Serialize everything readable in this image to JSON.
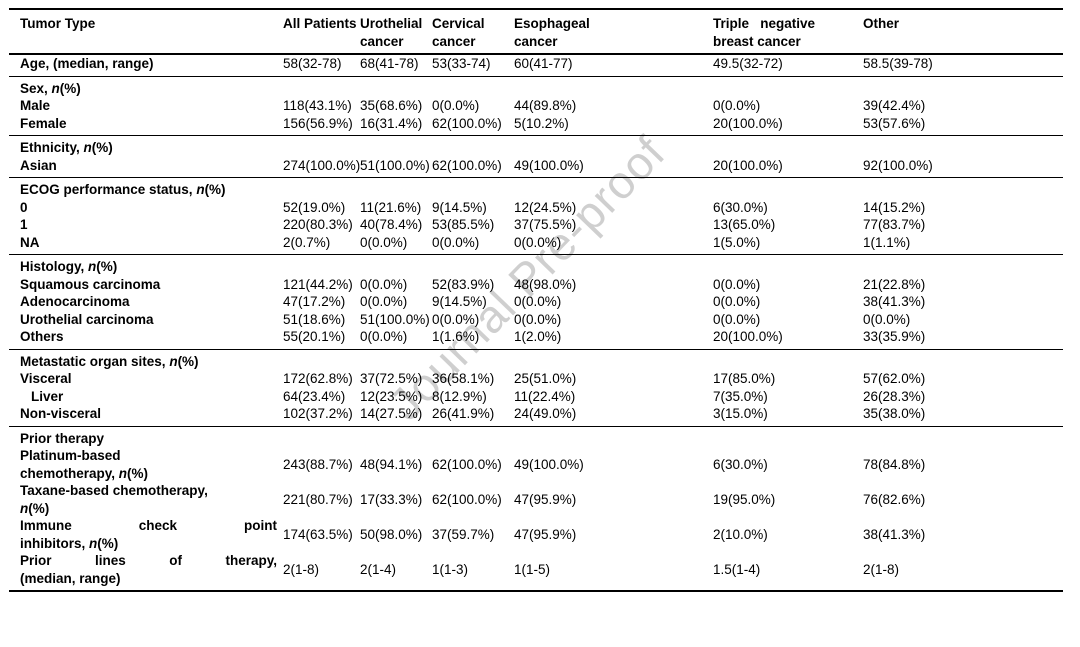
{
  "watermark": {
    "text": "Journal Pre-proof"
  },
  "colors": {
    "background": "#ffffff",
    "text": "#000000",
    "rule": "#000000",
    "watermark_gray": "#a9a9a9"
  },
  "table": {
    "columns": [
      "Tumor Type",
      "All Patients",
      "Urothelial\ncancer",
      "Cervical\ncancer",
      "Esophageal\ncancer",
      "Triple   negative\nbreast cancer",
      "Other"
    ],
    "rows": [
      {
        "label": "Age, (median, range)",
        "values": [
          "58(32-78)",
          "68(41-78)",
          "53(33-74)",
          "60(41-77)",
          "49.5(32-72)",
          "58.5(39-78)"
        ],
        "section_end": true
      },
      {
        "label": "Sex, *n*(%)",
        "values": []
      },
      {
        "label": "Male",
        "values": [
          "118(43.1%)",
          "35(68.6%)",
          "0(0.0%)",
          "44(89.8%)",
          "0(0.0%)",
          "39(42.4%)"
        ]
      },
      {
        "label": "Female",
        "values": [
          "156(56.9%)",
          "16(31.4%)",
          "62(100.0%)",
          "5(10.2%)",
          "20(100.0%)",
          "53(57.6%)"
        ],
        "section_end": true
      },
      {
        "label": "Ethnicity, *n*(%)",
        "values": []
      },
      {
        "label": "Asian",
        "values": [
          "274(100.0%)",
          "51(100.0%)",
          "62(100.0%)",
          "49(100.0%)",
          "20(100.0%)",
          "92(100.0%)"
        ],
        "section_end": true
      },
      {
        "label": "ECOG performance status, *n*(%)",
        "values": []
      },
      {
        "label": "0",
        "values": [
          "52(19.0%)",
          "11(21.6%)",
          "9(14.5%)",
          "12(24.5%)",
          "6(30.0%)",
          "14(15.2%)"
        ]
      },
      {
        "label": "1",
        "values": [
          "220(80.3%)",
          "40(78.4%)",
          "53(85.5%)",
          "37(75.5%)",
          "13(65.0%)",
          "77(83.7%)"
        ]
      },
      {
        "label": "NA",
        "values": [
          "2(0.7%)",
          "0(0.0%)",
          "0(0.0%)",
          "0(0.0%)",
          "1(5.0%)",
          "1(1.1%)"
        ],
        "section_end": true
      },
      {
        "label": "Histology, *n*(%)",
        "values": []
      },
      {
        "label": "Squamous carcinoma",
        "values": [
          "121(44.2%)",
          "0(0.0%)",
          "52(83.9%)",
          "48(98.0%)",
          "0(0.0%)",
          "21(22.8%)"
        ]
      },
      {
        "label": "Adenocarcinoma",
        "values": [
          "47(17.2%)",
          "0(0.0%)",
          "9(14.5%)",
          "0(0.0%)",
          "0(0.0%)",
          "38(41.3%)"
        ]
      },
      {
        "label": "Urothelial carcinoma",
        "values": [
          "51(18.6%)",
          "51(100.0%)",
          "0(0.0%)",
          "0(0.0%)",
          "0(0.0%)",
          "0(0.0%)"
        ]
      },
      {
        "label": "Others",
        "values": [
          "55(20.1%)",
          "0(0.0%)",
          "1(1.6%)",
          "1(2.0%)",
          "20(100.0%)",
          "33(35.9%)"
        ],
        "section_end": true
      },
      {
        "label": "Metastatic organ sites, *n*(%)",
        "values": []
      },
      {
        "label": "Visceral",
        "values": [
          "172(62.8%)",
          "37(72.5%)",
          "36(58.1%)",
          "25(51.0%)",
          "17(85.0%)",
          "57(62.0%)"
        ]
      },
      {
        "label": "Liver",
        "indent": true,
        "values": [
          "64(23.4%)",
          "12(23.5%)",
          "8(12.9%)",
          "11(22.4%)",
          "7(35.0%)",
          "26(28.3%)"
        ]
      },
      {
        "label": "Non-visceral",
        "values": [
          "102(37.2%)",
          "14(27.5%)",
          "26(41.9%)",
          "24(49.0%)",
          "3(15.0%)",
          "35(38.0%)"
        ],
        "section_end": true
      },
      {
        "label": "Prior therapy",
        "values": []
      },
      {
        "label": "Platinum-based\nchemotherapy, *n*(%)",
        "values": [
          "243(88.7%)",
          "48(94.1%)",
          "62(100.0%)",
          "49(100.0%)",
          "6(30.0%)",
          "78(84.8%)"
        ]
      },
      {
        "label": "Taxane-based chemotherapy,\n*n*(%)",
        "values": [
          "221(80.7%)",
          "17(33.3%)",
          "62(100.0%)",
          "47(95.9%)",
          "19(95.0%)",
          "76(82.6%)"
        ]
      },
      {
        "label": "Immune check point\ninhibitors, *n*(%)",
        "justify_first": true,
        "values": [
          "174(63.5%)",
          "50(98.0%)",
          "37(59.7%)",
          "47(95.9%)",
          "2(10.0%)",
          "38(41.3%)"
        ]
      },
      {
        "label": "Prior lines of therapy,\n(median, range)",
        "justify_first": true,
        "values": [
          "2(1-8)",
          "2(1-4)",
          "1(1-3)",
          "1(1-5)",
          "1.5(1-4)",
          "2(1-8)"
        ],
        "section_end": true,
        "final": true
      }
    ]
  }
}
